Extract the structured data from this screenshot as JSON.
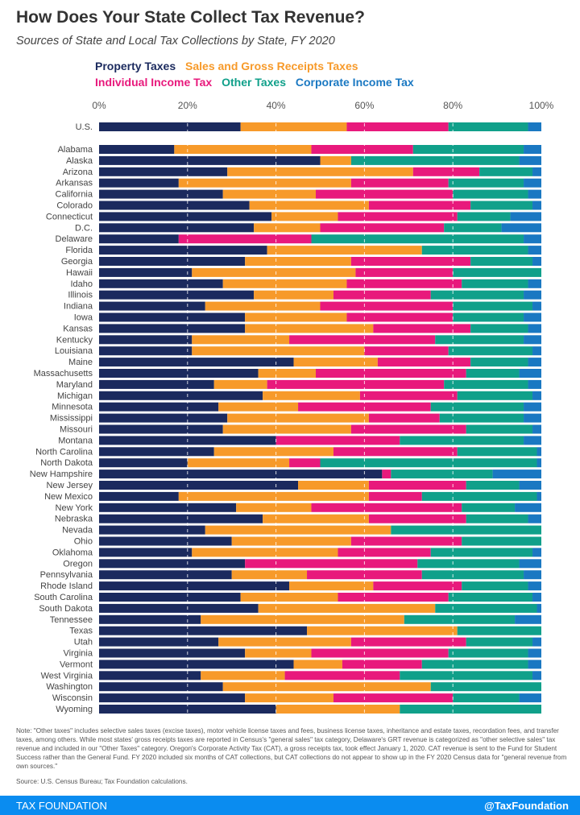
{
  "chart_data": {
    "type": "bar",
    "orientation": "horizontal-stacked-100",
    "title": "How Does Your State Collect Tax Revenue?",
    "subtitle": "Sources of State and Local Tax Collections by State, FY 2020",
    "xlim": [
      0,
      100
    ],
    "xticks": [
      "0%",
      "20%",
      "40%",
      "60%",
      "80%",
      "100%"
    ],
    "grid": true,
    "legend_placement": "top",
    "series": [
      {
        "name": "Property Taxes",
        "color": "#1b2a5e"
      },
      {
        "name": "Sales and Gross Receipts Taxes",
        "color": "#f79a2a"
      },
      {
        "name": "Individual Income Tax",
        "color": "#e8197c"
      },
      {
        "name": "Other Taxes",
        "color": "#10a08a"
      },
      {
        "name": "Corporate Income Tax",
        "color": "#1a78c2"
      }
    ],
    "rows": [
      {
        "label": "U.S.",
        "values": [
          32,
          24,
          23,
          18,
          3
        ]
      },
      {
        "label": "Alabama",
        "values": [
          17,
          31,
          23,
          25,
          4
        ]
      },
      {
        "label": "Alaska",
        "values": [
          50,
          7,
          0,
          38,
          5
        ]
      },
      {
        "label": "Arizona",
        "values": [
          29,
          42,
          15,
          12,
          2
        ]
      },
      {
        "label": "Arkansas",
        "values": [
          18,
          39,
          22,
          17,
          4
        ]
      },
      {
        "label": "California",
        "values": [
          28,
          21,
          31,
          17,
          3
        ]
      },
      {
        "label": "Colorado",
        "values": [
          34,
          27,
          23,
          14,
          2
        ]
      },
      {
        "label": "Connecticut",
        "values": [
          39,
          15,
          27,
          12,
          7
        ]
      },
      {
        "label": "D.C.",
        "values": [
          35,
          15,
          28,
          13,
          9
        ]
      },
      {
        "label": "Delaware",
        "values": [
          18,
          0,
          30,
          48,
          4
        ]
      },
      {
        "label": "Florida",
        "values": [
          38,
          35,
          0,
          24,
          3
        ]
      },
      {
        "label": "Georgia",
        "values": [
          33,
          24,
          27,
          14,
          2
        ]
      },
      {
        "label": "Hawaii",
        "values": [
          21,
          37,
          22,
          20,
          0
        ]
      },
      {
        "label": "Idaho",
        "values": [
          28,
          28,
          26,
          15,
          3
        ]
      },
      {
        "label": "Illinois",
        "values": [
          35,
          18,
          22,
          21,
          4
        ]
      },
      {
        "label": "Indiana",
        "values": [
          24,
          26,
          30,
          18,
          2
        ]
      },
      {
        "label": "Iowa",
        "values": [
          33,
          23,
          24,
          16,
          4
        ]
      },
      {
        "label": "Kansas",
        "values": [
          33,
          29,
          22,
          13,
          3
        ]
      },
      {
        "label": "Kentucky",
        "values": [
          21,
          22,
          33,
          20,
          4
        ]
      },
      {
        "label": "Louisiana",
        "values": [
          21,
          39,
          19,
          19,
          2
        ]
      },
      {
        "label": "Maine",
        "values": [
          44,
          19,
          21,
          13,
          3
        ]
      },
      {
        "label": "Massachusetts",
        "values": [
          36,
          13,
          34,
          12,
          5
        ]
      },
      {
        "label": "Maryland",
        "values": [
          26,
          12,
          40,
          19,
          3
        ]
      },
      {
        "label": "Michigan",
        "values": [
          37,
          22,
          22,
          17,
          2
        ]
      },
      {
        "label": "Minnesota",
        "values": [
          27,
          18,
          30,
          21,
          4
        ]
      },
      {
        "label": "Mississippi",
        "values": [
          29,
          32,
          16,
          19,
          4
        ]
      },
      {
        "label": "Missouri",
        "values": [
          28,
          29,
          26,
          15,
          2
        ]
      },
      {
        "label": "Montana",
        "values": [
          40,
          0,
          28,
          28,
          4
        ]
      },
      {
        "label": "North Carolina",
        "values": [
          26,
          27,
          28,
          18,
          1
        ]
      },
      {
        "label": "North Dakota",
        "values": [
          20,
          23,
          7,
          49,
          1
        ]
      },
      {
        "label": "New Hampshire",
        "values": [
          64,
          0,
          2,
          23,
          11
        ]
      },
      {
        "label": "New Jersey",
        "values": [
          45,
          16,
          22,
          12,
          5
        ]
      },
      {
        "label": "New Mexico",
        "values": [
          18,
          43,
          12,
          26,
          1
        ]
      },
      {
        "label": "New York",
        "values": [
          31,
          17,
          34,
          12,
          6
        ]
      },
      {
        "label": "Nebraska",
        "values": [
          37,
          24,
          22,
          14,
          3
        ]
      },
      {
        "label": "Nevada",
        "values": [
          24,
          42,
          0,
          34,
          0
        ]
      },
      {
        "label": "Ohio",
        "values": [
          30,
          27,
          25,
          18,
          0
        ]
      },
      {
        "label": "Oklahoma",
        "values": [
          21,
          33,
          21,
          23,
          2
        ]
      },
      {
        "label": "Oregon",
        "values": [
          33,
          0,
          39,
          23,
          5
        ]
      },
      {
        "label": "Pennsylvania",
        "values": [
          30,
          17,
          26,
          23,
          4
        ]
      },
      {
        "label": "Rhode Island",
        "values": [
          43,
          19,
          20,
          15,
          3
        ]
      },
      {
        "label": "South Carolina",
        "values": [
          32,
          22,
          25,
          19,
          2
        ]
      },
      {
        "label": "South Dakota",
        "values": [
          36,
          40,
          0,
          23,
          1
        ]
      },
      {
        "label": "Tennessee",
        "values": [
          23,
          46,
          0,
          25,
          6
        ]
      },
      {
        "label": "Texas",
        "values": [
          47,
          34,
          0,
          19,
          0
        ]
      },
      {
        "label": "Utah",
        "values": [
          27,
          30,
          26,
          15,
          2
        ]
      },
      {
        "label": "Virginia",
        "values": [
          33,
          15,
          31,
          18,
          3
        ]
      },
      {
        "label": "Vermont",
        "values": [
          44,
          11,
          18,
          24,
          3
        ]
      },
      {
        "label": "West Virginia",
        "values": [
          23,
          19,
          26,
          30,
          2
        ]
      },
      {
        "label": "Washington",
        "values": [
          28,
          47,
          0,
          25,
          0
        ]
      },
      {
        "label": "Wisconsin",
        "values": [
          33,
          20,
          27,
          15,
          5
        ]
      },
      {
        "label": "Wyoming",
        "values": [
          40,
          28,
          0,
          32,
          0
        ]
      }
    ]
  },
  "note": "Note: \"Other taxes\" includes selective sales taxes (excise taxes), motor vehicle license taxes and fees, business license taxes, inheritance and estate taxes, recordation fees, and transfer taxes, among others. While most states' gross receipts taxes are reported in Census's \"general sales\" tax category, Delaware's GRT revenue is categorized as \"other selective sales\" tax revenue and included in our \"Other Taxes\" category. Oregon's Corporate Activity Tax (CAT), a gross receipts tax, took effect January 1, 2020. CAT revenue is sent to the Fund for Student Success rather than the General Fund. FY 2020 included six months of CAT collections, but CAT collections do not appear to show up in the FY 2020 Census data for \"general revenue from own sources.\"",
  "source": "Source: U.S. Census Bureau; Tax Foundation calculations.",
  "footer": {
    "brand": "TAX FOUNDATION",
    "handle": "@TaxFoundation",
    "color": "#0a8cf0"
  }
}
